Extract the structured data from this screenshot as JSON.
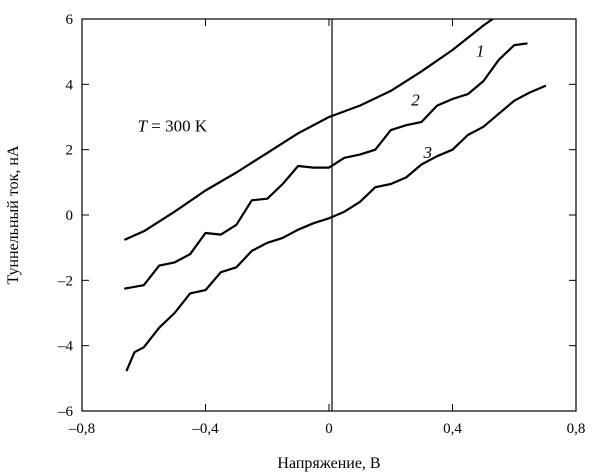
{
  "chart_data": {
    "type": "line",
    "xlabel": "Напряжение, В",
    "ylabel": "Туннельный ток, нА",
    "xlim": [
      -0.8,
      0.8
    ],
    "ylim": [
      -6,
      6
    ],
    "xticks": [
      -0.8,
      -0.4,
      0,
      0.4,
      0.8
    ],
    "xtick_labels": [
      "–0,8",
      "–0,4",
      "0",
      "0,4",
      "0,8"
    ],
    "yticks": [
      -6,
      -4,
      -2,
      0,
      2,
      4,
      6
    ],
    "ytick_labels": [
      "–6",
      "–4",
      "–2",
      "0",
      "2",
      "4",
      "6"
    ],
    "grid": false,
    "annotation": {
      "italic": "T",
      "rest": " = 300 K",
      "x": -0.62,
      "y": 2.55
    },
    "series": [
      {
        "label": "1",
        "label_pos": [
          0.49,
          4.85
        ],
        "x": [
          -0.66,
          -0.6,
          -0.5,
          -0.4,
          -0.3,
          -0.2,
          -0.1,
          0.0,
          0.1,
          0.2,
          0.3,
          0.4,
          0.5,
          0.53
        ],
        "y": [
          -0.75,
          -0.5,
          0.1,
          0.75,
          1.3,
          1.9,
          2.5,
          3.0,
          3.35,
          3.8,
          4.4,
          5.05,
          5.8,
          6.0
        ]
      },
      {
        "label": "2",
        "label_pos": [
          0.28,
          3.35
        ],
        "x": [
          -0.66,
          -0.6,
          -0.55,
          -0.5,
          -0.45,
          -0.4,
          -0.35,
          -0.3,
          -0.25,
          -0.2,
          -0.15,
          -0.1,
          -0.05,
          0.0,
          0.05,
          0.1,
          0.15,
          0.2,
          0.25,
          0.3,
          0.35,
          0.4,
          0.45,
          0.5,
          0.55,
          0.6,
          0.64
        ],
        "y": [
          -2.25,
          -2.15,
          -1.55,
          -1.45,
          -1.2,
          -0.55,
          -0.6,
          -0.3,
          0.45,
          0.5,
          0.95,
          1.5,
          1.45,
          1.45,
          1.75,
          1.85,
          2.0,
          2.6,
          2.75,
          2.85,
          3.35,
          3.55,
          3.7,
          4.1,
          4.75,
          5.2,
          5.25
        ]
      },
      {
        "label": "3",
        "label_pos": [
          0.32,
          1.75
        ],
        "x": [
          -0.655,
          -0.63,
          -0.6,
          -0.55,
          -0.5,
          -0.45,
          -0.4,
          -0.35,
          -0.3,
          -0.25,
          -0.2,
          -0.15,
          -0.1,
          -0.05,
          0.0,
          0.05,
          0.1,
          0.15,
          0.2,
          0.25,
          0.3,
          0.35,
          0.4,
          0.45,
          0.5,
          0.55,
          0.6,
          0.65,
          0.7
        ],
        "y": [
          -4.75,
          -4.2,
          -4.05,
          -3.45,
          -3.0,
          -2.4,
          -2.3,
          -1.75,
          -1.6,
          -1.1,
          -0.85,
          -0.7,
          -0.45,
          -0.25,
          -0.1,
          0.1,
          0.4,
          0.85,
          0.95,
          1.15,
          1.55,
          1.8,
          2.0,
          2.45,
          2.7,
          3.1,
          3.5,
          3.75,
          3.95
        ]
      }
    ]
  }
}
